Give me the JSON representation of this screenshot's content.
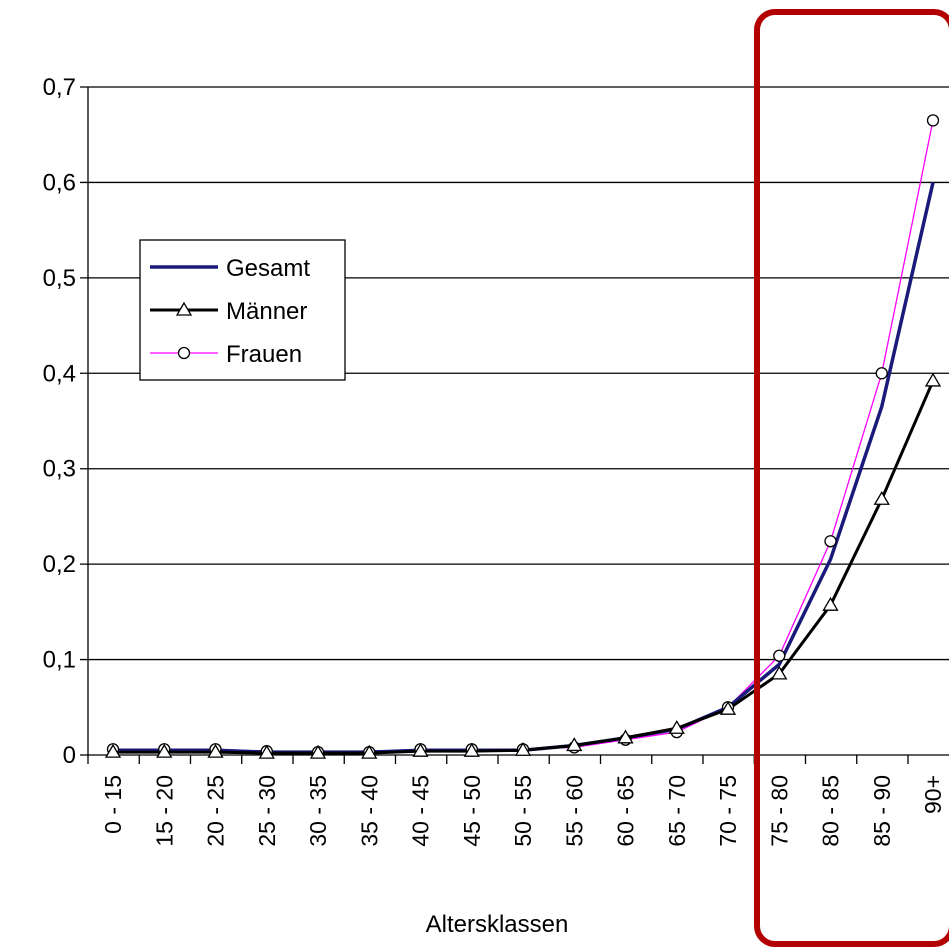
{
  "chart_data": {
    "type": "line",
    "xlabel": "Altersklassen",
    "ylabel": "",
    "ylim": [
      0,
      0.7
    ],
    "yticks": [
      "0",
      "0,1",
      "0,2",
      "0,3",
      "0,4",
      "0,5",
      "0,6",
      "0,7"
    ],
    "categories": [
      "0 - 15",
      "15 - 20",
      "20 - 25",
      "25 - 30",
      "30 - 35",
      "35 - 40",
      "40 - 45",
      "45 - 50",
      "50 - 55",
      "55 - 60",
      "60 - 65",
      "65 - 70",
      "70 - 75",
      "75 - 80",
      "80 - 85",
      "85 - 90",
      "90+"
    ],
    "grid": "horizontal",
    "legend": "left",
    "series": [
      {
        "name": "Gesamt",
        "color": "#1a1a7a",
        "marker": "none",
        "values": [
          0.005,
          0.005,
          0.005,
          0.003,
          0.003,
          0.003,
          0.005,
          0.005,
          0.005,
          0.01,
          0.018,
          0.027,
          0.05,
          0.095,
          0.205,
          0.365,
          0.6
        ]
      },
      {
        "name": "Männer",
        "color": "#000000",
        "marker": "triangle",
        "values": [
          0.003,
          0.003,
          0.003,
          0.002,
          0.002,
          0.002,
          0.004,
          0.004,
          0.005,
          0.01,
          0.018,
          0.028,
          0.048,
          0.085,
          0.157,
          0.268,
          0.392
        ]
      },
      {
        "name": "Frauen",
        "color": "#ff00ff",
        "marker": "circle",
        "values": [
          0.006,
          0.006,
          0.006,
          0.004,
          0.003,
          0.003,
          0.006,
          0.006,
          0.006,
          0.008,
          0.016,
          0.024,
          0.05,
          0.104,
          0.224,
          0.4,
          0.665
        ]
      }
    ]
  },
  "highlight": {
    "color": "#b30000"
  }
}
